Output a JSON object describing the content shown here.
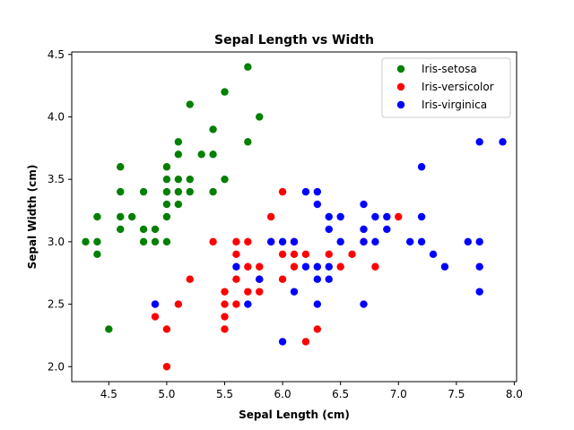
{
  "chart_data": {
    "type": "scatter",
    "title": "Sepal Length vs Width",
    "xlabel": "Sepal Length (cm)",
    "ylabel": "Sepal Width (cm)",
    "xlim": [
      4.18,
      8.02
    ],
    "ylim": [
      1.88,
      4.52
    ],
    "xticks": [
      4.5,
      5.0,
      5.5,
      6.0,
      6.5,
      7.0,
      7.5,
      8.0
    ],
    "yticks": [
      2.0,
      2.5,
      3.0,
      3.5,
      4.0,
      4.5
    ],
    "xtick_labels": [
      "4.5",
      "5.0",
      "5.5",
      "6.0",
      "6.5",
      "7.0",
      "7.5",
      "8.0"
    ],
    "ytick_labels": [
      "2.0",
      "2.5",
      "3.0",
      "3.5",
      "4.0",
      "4.5"
    ],
    "grid": false,
    "legend_position": "top-right",
    "series": [
      {
        "name": "Iris-setosa",
        "color": "#008000",
        "points": [
          [
            5.7,
            4.4
          ],
          [
            5.2,
            4.1
          ],
          [
            5.5,
            4.2
          ],
          [
            5.8,
            4.0
          ],
          [
            5.4,
            3.9
          ],
          [
            5.1,
            3.8
          ],
          [
            5.7,
            3.8
          ],
          [
            5.1,
            3.7
          ],
          [
            5.3,
            3.7
          ],
          [
            5.4,
            3.7
          ],
          [
            4.6,
            3.6
          ],
          [
            5.0,
            3.6
          ],
          [
            5.0,
            3.5
          ],
          [
            5.1,
            3.5
          ],
          [
            5.2,
            3.5
          ],
          [
            5.5,
            3.5
          ],
          [
            4.6,
            3.4
          ],
          [
            4.8,
            3.4
          ],
          [
            5.0,
            3.4
          ],
          [
            5.1,
            3.4
          ],
          [
            5.2,
            3.4
          ],
          [
            5.4,
            3.4
          ],
          [
            5.0,
            3.3
          ],
          [
            5.1,
            3.3
          ],
          [
            4.4,
            3.2
          ],
          [
            4.6,
            3.2
          ],
          [
            4.7,
            3.2
          ],
          [
            5.0,
            3.2
          ],
          [
            4.6,
            3.1
          ],
          [
            4.8,
            3.1
          ],
          [
            4.9,
            3.1
          ],
          [
            4.3,
            3.0
          ],
          [
            4.4,
            3.0
          ],
          [
            4.8,
            3.0
          ],
          [
            4.9,
            3.0
          ],
          [
            5.0,
            3.0
          ],
          [
            4.4,
            2.9
          ],
          [
            4.5,
            2.3
          ]
        ]
      },
      {
        "name": "Iris-versicolor",
        "color": "#ff0000",
        "points": [
          [
            6.0,
            3.4
          ],
          [
            5.9,
            3.2
          ],
          [
            7.0,
            3.2
          ],
          [
            5.4,
            3.0
          ],
          [
            5.6,
            3.0
          ],
          [
            5.7,
            3.0
          ],
          [
            5.9,
            3.0
          ],
          [
            6.1,
            3.0
          ],
          [
            6.7,
            3.0
          ],
          [
            5.6,
            2.9
          ],
          [
            6.0,
            2.9
          ],
          [
            6.1,
            2.9
          ],
          [
            6.2,
            2.9
          ],
          [
            6.4,
            2.9
          ],
          [
            6.6,
            2.9
          ],
          [
            5.7,
            2.8
          ],
          [
            5.8,
            2.8
          ],
          [
            6.1,
            2.8
          ],
          [
            6.5,
            2.8
          ],
          [
            6.8,
            2.8
          ],
          [
            5.2,
            2.7
          ],
          [
            5.6,
            2.7
          ],
          [
            5.8,
            2.7
          ],
          [
            6.0,
            2.7
          ],
          [
            5.5,
            2.6
          ],
          [
            5.7,
            2.6
          ],
          [
            5.8,
            2.6
          ],
          [
            4.9,
            2.5
          ],
          [
            5.1,
            2.5
          ],
          [
            5.5,
            2.5
          ],
          [
            5.6,
            2.5
          ],
          [
            4.9,
            2.4
          ],
          [
            5.5,
            2.4
          ],
          [
            5.0,
            2.3
          ],
          [
            5.5,
            2.3
          ],
          [
            6.3,
            2.3
          ],
          [
            6.2,
            2.2
          ],
          [
            5.0,
            2.0
          ]
        ]
      },
      {
        "name": "Iris-virginica",
        "color": "#0000ff",
        "points": [
          [
            7.7,
            3.8
          ],
          [
            7.9,
            3.8
          ],
          [
            7.2,
            3.6
          ],
          [
            6.2,
            3.4
          ],
          [
            6.3,
            3.4
          ],
          [
            6.3,
            3.3
          ],
          [
            6.7,
            3.3
          ],
          [
            6.4,
            3.2
          ],
          [
            6.5,
            3.2
          ],
          [
            6.8,
            3.2
          ],
          [
            6.9,
            3.2
          ],
          [
            7.2,
            3.2
          ],
          [
            6.4,
            3.1
          ],
          [
            6.7,
            3.1
          ],
          [
            6.9,
            3.1
          ],
          [
            5.9,
            3.0
          ],
          [
            6.0,
            3.0
          ],
          [
            6.1,
            3.0
          ],
          [
            6.5,
            3.0
          ],
          [
            6.7,
            3.0
          ],
          [
            6.8,
            3.0
          ],
          [
            7.1,
            3.0
          ],
          [
            7.2,
            3.0
          ],
          [
            7.6,
            3.0
          ],
          [
            7.7,
            3.0
          ],
          [
            7.3,
            2.9
          ],
          [
            5.6,
            2.8
          ],
          [
            6.2,
            2.8
          ],
          [
            6.3,
            2.8
          ],
          [
            6.4,
            2.8
          ],
          [
            7.4,
            2.8
          ],
          [
            7.7,
            2.8
          ],
          [
            5.8,
            2.7
          ],
          [
            6.3,
            2.7
          ],
          [
            6.4,
            2.7
          ],
          [
            6.1,
            2.6
          ],
          [
            7.7,
            2.6
          ],
          [
            4.9,
            2.5
          ],
          [
            5.7,
            2.5
          ],
          [
            6.3,
            2.5
          ],
          [
            6.7,
            2.5
          ],
          [
            6.0,
            2.2
          ]
        ]
      }
    ]
  }
}
